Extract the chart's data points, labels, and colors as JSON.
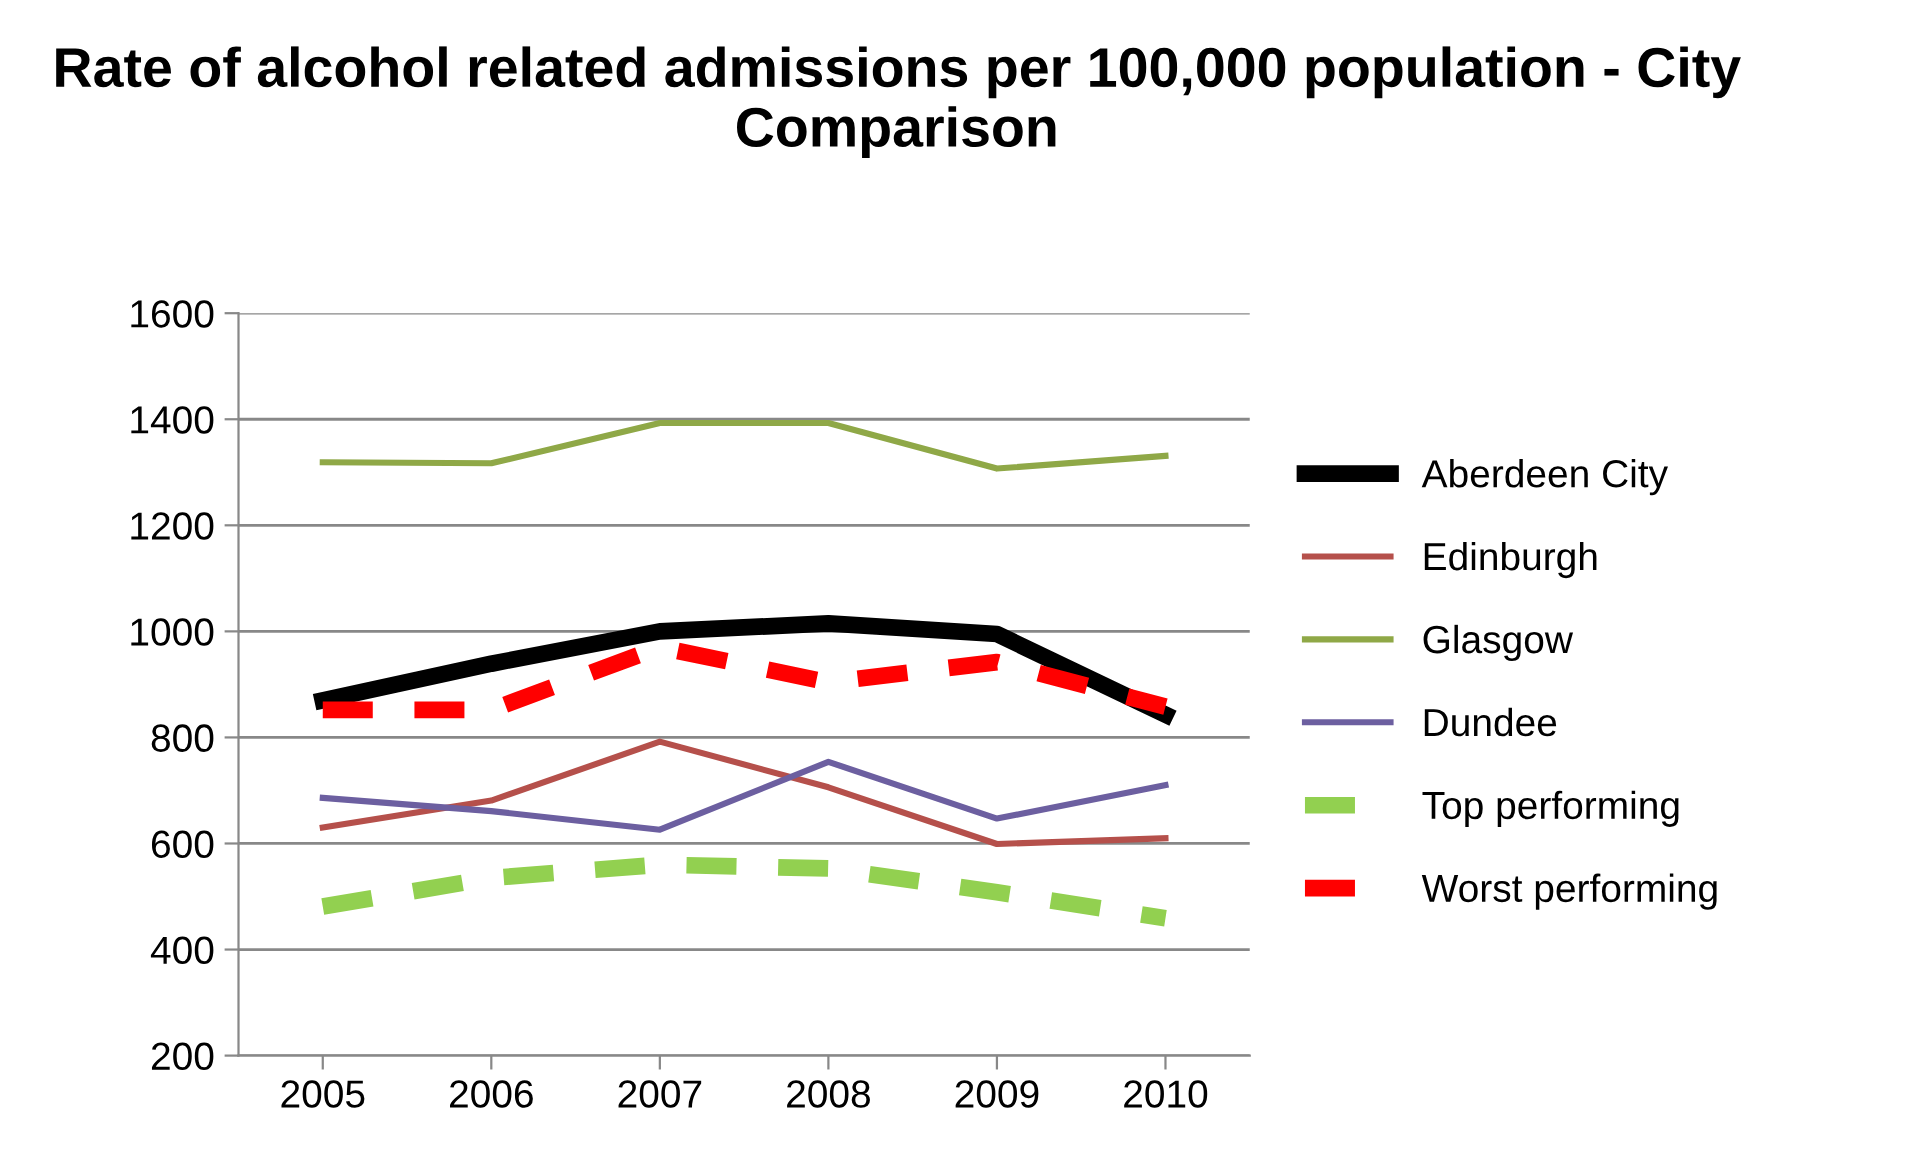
{
  "chart_data": {
    "type": "line",
    "title": "Rate of alcohol related admissions per 100,000 population - City Comparison",
    "categories": [
      "2005",
      "2006",
      "2007",
      "2008",
      "2009",
      "2010"
    ],
    "series": [
      {
        "name": "Aberdeen City",
        "color": "#000000",
        "line_style": "solid",
        "values": [
          870,
          939,
          1000,
          1015,
          995,
          843
        ]
      },
      {
        "name": "Edinburgh",
        "color": "#b5504b",
        "line_style": "solid",
        "values": [
          630,
          681,
          792,
          706,
          599,
          610
        ]
      },
      {
        "name": "Glasgow",
        "color": "#8fa847",
        "line_style": "solid",
        "values": [
          1319,
          1317,
          1393,
          1393,
          1307,
          1331
        ]
      },
      {
        "name": "Dundee",
        "color": "#6c5fa0",
        "line_style": "solid",
        "values": [
          686,
          661,
          626,
          754,
          647,
          710
        ]
      },
      {
        "name": "Top performing",
        "color": "#92d050",
        "line_style": "dashed",
        "values": [
          481,
          535,
          560,
          553,
          508,
          459
        ]
      },
      {
        "name": "Worst performing",
        "color": "#ff0000",
        "line_style": "dashed",
        "values": [
          852,
          852,
          970,
          904,
          942,
          858
        ]
      }
    ],
    "ylim": [
      200,
      1600
    ],
    "yticks": [
      200,
      400,
      600,
      800,
      1000,
      1200,
      1400,
      1600
    ],
    "grid": "y",
    "legend": "right",
    "marker": "none"
  }
}
